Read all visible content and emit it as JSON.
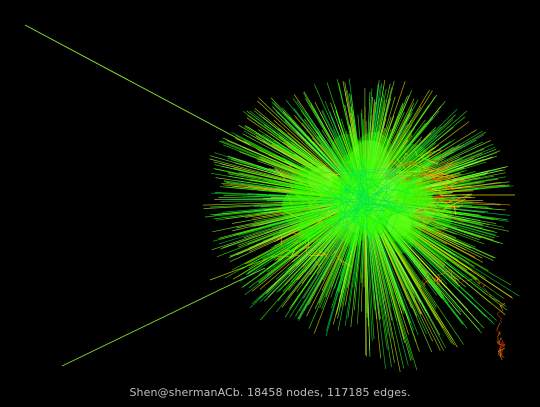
{
  "graph": {
    "caption": "Shen@shermanACb. 18458 nodes, 117185 edges.",
    "background_color": "#000000",
    "palette": {
      "bright": "#33ff00",
      "lime": "#99ff33",
      "yellow": "#e6e600",
      "orange": "#ff9900",
      "red": "#e63200",
      "green": "#00e64d"
    }
  }
}
